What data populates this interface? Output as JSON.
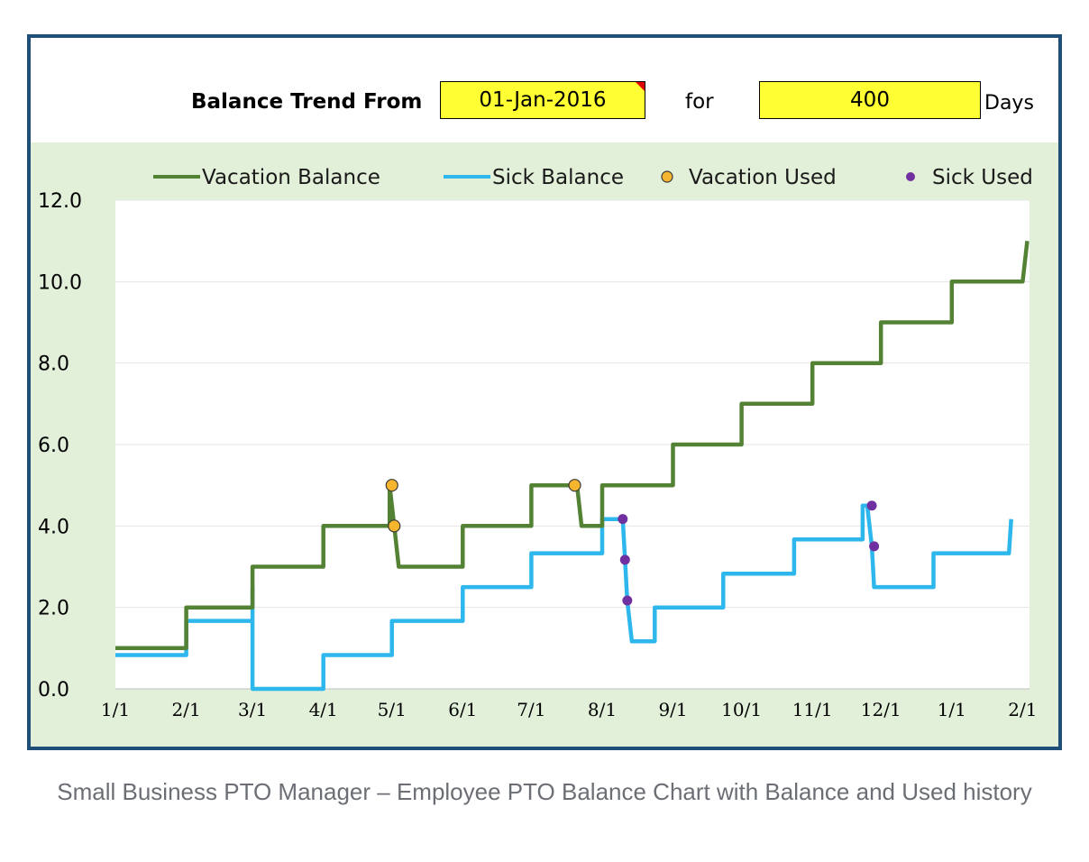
{
  "header": {
    "label": "Balance Trend From",
    "start_date": "01-Jan-2016",
    "for_label": "for",
    "days_value": "400",
    "days_label": "Days"
  },
  "caption": "Small Business PTO Manager – Employee PTO Balance Chart with Balance and Used history",
  "colors": {
    "vacation": "#548235",
    "sick": "#2db7ec",
    "vacation_used": "#f5b52e",
    "sick_used": "#7030a0",
    "plot_bg": "#e2efd9",
    "frame": "#1f4e79",
    "input_bg": "#ffff33"
  },
  "chart_data": {
    "type": "line",
    "x_unit": "day",
    "xlim": [
      0,
      400
    ],
    "ylim": [
      0,
      12
    ],
    "yticks": [
      "0.0",
      "2.0",
      "4.0",
      "6.0",
      "8.0",
      "10.0",
      "12.0"
    ],
    "ytick_values": [
      0,
      2,
      4,
      6,
      8,
      10,
      12
    ],
    "xticks": [
      "1/1",
      "2/1",
      "3/1",
      "4/1",
      "5/1",
      "6/1",
      "7/1",
      "8/1",
      "9/1",
      "10/1",
      "11/1",
      "12/1",
      "1/1",
      "2/1"
    ],
    "xtick_values": [
      0,
      31,
      60,
      91,
      121,
      152,
      182,
      213,
      244,
      274,
      305,
      335,
      366,
      397
    ],
    "grid": true,
    "legend": "top",
    "series": [
      {
        "name": "Vacation Balance",
        "kind": "step-line",
        "points": [
          [
            0,
            1
          ],
          [
            31,
            1
          ],
          [
            31,
            2
          ],
          [
            60,
            2
          ],
          [
            60,
            3
          ],
          [
            91,
            3
          ],
          [
            91,
            4
          ],
          [
            120,
            4
          ],
          [
            120,
            5
          ],
          [
            122,
            4
          ],
          [
            124,
            3
          ],
          [
            152,
            3
          ],
          [
            152,
            4
          ],
          [
            182,
            4
          ],
          [
            182,
            5
          ],
          [
            202,
            5
          ],
          [
            204,
            4
          ],
          [
            213,
            4
          ],
          [
            213,
            5
          ],
          [
            244,
            5
          ],
          [
            244,
            6
          ],
          [
            274,
            6
          ],
          [
            274,
            7
          ],
          [
            305,
            7
          ],
          [
            305,
            8
          ],
          [
            335,
            8
          ],
          [
            335,
            9
          ],
          [
            366,
            9
          ],
          [
            366,
            10
          ],
          [
            397,
            10
          ],
          [
            399,
            11
          ]
        ]
      },
      {
        "name": "Sick Balance",
        "kind": "step-line",
        "points": [
          [
            0,
            0.83
          ],
          [
            31,
            0.83
          ],
          [
            31,
            1.67
          ],
          [
            60,
            1.67
          ],
          [
            60,
            2.5
          ],
          [
            60,
            0
          ],
          [
            91,
            0
          ],
          [
            91,
            0.83
          ],
          [
            121,
            0.83
          ],
          [
            121,
            1.67
          ],
          [
            152,
            1.67
          ],
          [
            152,
            2.5
          ],
          [
            182,
            2.5
          ],
          [
            182,
            3.33
          ],
          [
            213,
            3.33
          ],
          [
            213,
            4.17
          ],
          [
            222,
            4.17
          ],
          [
            223,
            3.17
          ],
          [
            224,
            2.17
          ],
          [
            226,
            1.17
          ],
          [
            236,
            1.17
          ],
          [
            236,
            2.0
          ],
          [
            266,
            2.0
          ],
          [
            266,
            2.83
          ],
          [
            297,
            2.83
          ],
          [
            297,
            3.67
          ],
          [
            327,
            3.67
          ],
          [
            327,
            4.5
          ],
          [
            329,
            4.5
          ],
          [
            331,
            3.5
          ],
          [
            332,
            2.5
          ],
          [
            358,
            2.5
          ],
          [
            358,
            3.33
          ],
          [
            391,
            3.33
          ],
          [
            392,
            4.17
          ]
        ]
      },
      {
        "name": "Vacation Used",
        "kind": "marker",
        "points": [
          [
            121,
            5
          ],
          [
            122,
            4
          ],
          [
            201,
            5
          ]
        ]
      },
      {
        "name": "Sick Used",
        "kind": "marker",
        "points": [
          [
            222,
            4.17
          ],
          [
            223,
            3.17
          ],
          [
            224,
            2.17
          ],
          [
            331,
            4.5
          ],
          [
            332,
            3.5
          ]
        ]
      }
    ]
  }
}
